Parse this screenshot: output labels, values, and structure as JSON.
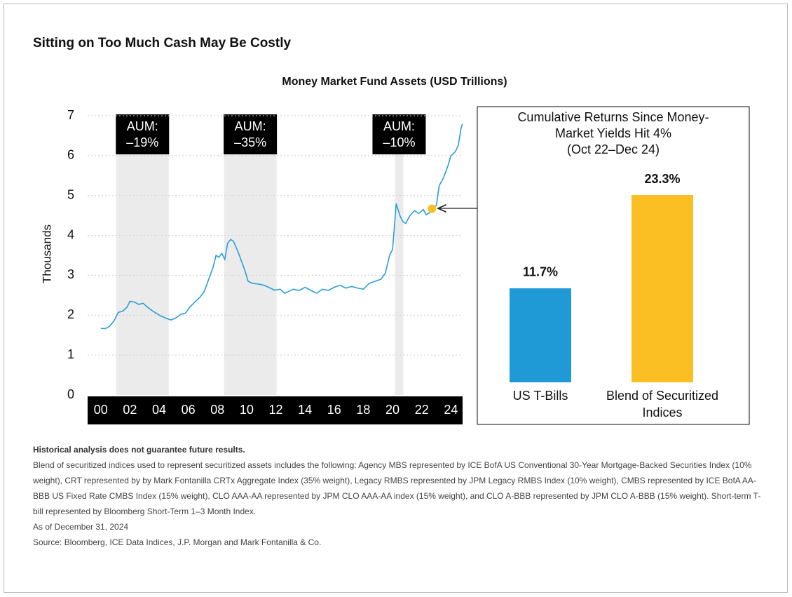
{
  "title": "Sitting on Too Much Cash May Be Costly",
  "chart_data": [
    {
      "type": "line",
      "title": "Money Market Fund Assets (USD Trillions)",
      "y_label": "Thousands",
      "color": "#2a9fd6",
      "x": [
        2000.0,
        2000.3,
        2000.6,
        2000.9,
        2001.2,
        2001.5,
        2001.8,
        2002.0,
        2002.3,
        2002.6,
        2002.9,
        2003.2,
        2003.5,
        2003.8,
        2004.1,
        2004.5,
        2004.8,
        2005.1,
        2005.5,
        2005.8,
        2006.1,
        2006.5,
        2006.8,
        2007.1,
        2007.4,
        2007.7,
        2007.9,
        2008.1,
        2008.3,
        2008.5,
        2008.7,
        2008.9,
        2009.1,
        2009.4,
        2009.7,
        2009.9,
        2010.1,
        2010.4,
        2010.8,
        2011.2,
        2011.5,
        2011.9,
        2012.3,
        2012.6,
        2012.9,
        2013.2,
        2013.6,
        2014.0,
        2014.4,
        2014.8,
        2015.2,
        2015.6,
        2016.0,
        2016.4,
        2016.8,
        2017.2,
        2017.6,
        2018.0,
        2018.4,
        2018.8,
        2019.2,
        2019.5,
        2019.8,
        2020.0,
        2020.1,
        2020.25,
        2020.5,
        2020.7,
        2020.9,
        2021.2,
        2021.5,
        2021.8,
        2022.1,
        2022.3,
        2022.6,
        2022.8,
        2023.0,
        2023.2,
        2023.5,
        2023.8,
        2024.0,
        2024.3,
        2024.5,
        2024.7,
        2024.8
      ],
      "values": [
        1.67,
        1.66,
        1.72,
        1.85,
        2.07,
        2.1,
        2.2,
        2.35,
        2.33,
        2.27,
        2.3,
        2.2,
        2.12,
        2.05,
        1.98,
        1.92,
        1.88,
        1.92,
        2.02,
        2.05,
        2.2,
        2.35,
        2.45,
        2.6,
        2.9,
        3.2,
        3.5,
        3.45,
        3.55,
        3.4,
        3.8,
        3.9,
        3.85,
        3.6,
        3.3,
        3.1,
        2.85,
        2.8,
        2.78,
        2.75,
        2.7,
        2.63,
        2.65,
        2.55,
        2.6,
        2.65,
        2.62,
        2.7,
        2.62,
        2.55,
        2.65,
        2.62,
        2.7,
        2.75,
        2.68,
        2.72,
        2.68,
        2.65,
        2.8,
        2.85,
        2.9,
        3.05,
        3.5,
        3.65,
        4.1,
        4.8,
        4.5,
        4.35,
        4.3,
        4.5,
        4.62,
        4.55,
        4.65,
        4.52,
        4.58,
        4.7,
        4.75,
        5.25,
        5.45,
        5.75,
        6.0,
        6.1,
        6.25,
        6.7,
        6.8
      ],
      "xlim": [
        1999.1,
        2024.8
      ],
      "xticks": [
        {
          "value": 2000,
          "label": "00"
        },
        {
          "value": 2002,
          "label": "02"
        },
        {
          "value": 2004,
          "label": "04"
        },
        {
          "value": 2006,
          "label": "06"
        },
        {
          "value": 2008,
          "label": "08"
        },
        {
          "value": 2010,
          "label": "10"
        },
        {
          "value": 2012,
          "label": "12"
        },
        {
          "value": 2014,
          "label": "14"
        },
        {
          "value": 2016,
          "label": "16"
        },
        {
          "value": 2018,
          "label": "18"
        },
        {
          "value": 2020,
          "label": "20"
        },
        {
          "value": 2022,
          "label": "22"
        },
        {
          "value": 2024,
          "label": "24"
        }
      ],
      "ylim": [
        0,
        7
      ],
      "yticks": [
        0,
        1,
        2,
        3,
        4,
        5,
        6,
        7
      ],
      "grid": true,
      "shaded": [
        {
          "start": 2001.06,
          "end": 2004.66,
          "label": [
            "AUM:",
            "–19%"
          ]
        },
        {
          "start": 2008.45,
          "end": 2012.05,
          "label": [
            "AUM:",
            "–35%"
          ]
        },
        {
          "start": 2020.16,
          "end": 2020.74,
          "label": [
            "AUM:",
            "–10%"
          ]
        }
      ],
      "marker": {
        "x": 2022.7,
        "y": 4.67,
        "color": "#fbbf24"
      }
    },
    {
      "type": "bar",
      "title": [
        "Cumulative Returns Since Money-",
        "Market Yields Hit 4%",
        "(Oct 22–Dec 24)"
      ],
      "categories": [
        "US T-Bills",
        "Blend of Securitized Indices"
      ],
      "values": [
        11.7,
        23.3
      ],
      "value_labels": [
        "11.7%",
        "23.3%"
      ],
      "colors": [
        "#1f9ad6",
        "#fbbf24"
      ],
      "ylim": [
        0,
        23.3
      ]
    }
  ],
  "notes": [
    "Historical analysis does not guarantee future results.",
    "Blend of securitized indices used to represent securitized assets includes the following: Agency MBS represented by ICE BofA US Conventional 30-Year Mortgage-Backed Securities Index (10% weight), CRT represented by by Mark Fontanilla CRTx Aggregate Index (35% weight), Legacy RMBS represented by JPM Legacy RMBS Index (10% weight), CMBS represented by ICE BofA AA-BBB US Fixed Rate CMBS Index (15% weight), CLO AAA-AA represented by JPM CLO AAA-AA index (15% weight), and CLO A-BBB represented by JPM CLO A-BBB (15% weight). Short-term T-bill represented by Bloomberg Short-Term 1–3 Month Index.",
    "As of December 31, 2024",
    "Source: Bloomberg, ICE Data Indices, J.P. Morgan and Mark Fontanilla & Co."
  ]
}
